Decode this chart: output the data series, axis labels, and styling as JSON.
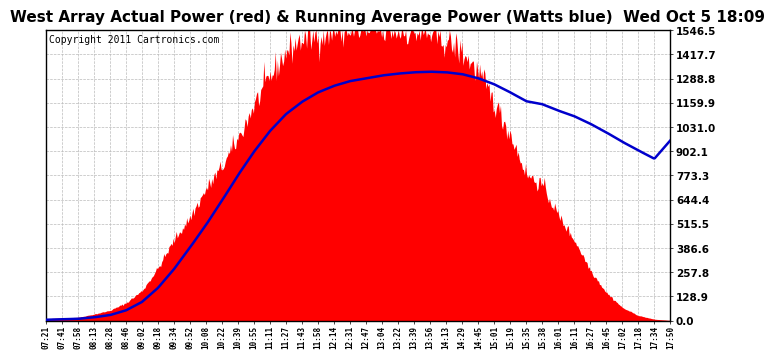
{
  "title": "West Array Actual Power (red) & Running Average Power (Watts blue)  Wed Oct 5 18:09",
  "copyright": "Copyright 2011 Cartronics.com",
  "yticks": [
    0.0,
    128.9,
    257.8,
    386.6,
    515.5,
    644.4,
    773.3,
    902.1,
    1031.0,
    1159.9,
    1288.8,
    1417.7,
    1546.5
  ],
  "ymax": 1546.5,
  "ymin": 0.0,
  "red_color": "#FF0000",
  "blue_color": "#0000CC",
  "bg_color": "#FFFFFF",
  "grid_color": "#BBBBBB",
  "title_fontsize": 11,
  "copyright_fontsize": 7,
  "x_times": [
    "07:21",
    "07:41",
    "07:58",
    "08:13",
    "08:28",
    "08:46",
    "09:02",
    "09:18",
    "09:34",
    "09:52",
    "10:08",
    "10:22",
    "10:39",
    "10:55",
    "11:11",
    "11:27",
    "11:43",
    "11:58",
    "12:14",
    "12:31",
    "12:47",
    "13:04",
    "13:22",
    "13:39",
    "13:56",
    "14:13",
    "14:29",
    "14:45",
    "15:01",
    "15:19",
    "15:35",
    "15:38",
    "16:01",
    "16:11",
    "16:27",
    "16:45",
    "17:02",
    "17:18",
    "17:34",
    "17:50"
  ],
  "red_values": [
    10,
    15,
    18,
    35,
    55,
    95,
    160,
    280,
    430,
    550,
    700,
    820,
    970,
    1150,
    1300,
    1430,
    1500,
    1520,
    1540,
    1546,
    1542,
    1545,
    1540,
    1536,
    1520,
    1490,
    1430,
    1320,
    1160,
    990,
    780,
    720,
    560,
    430,
    270,
    150,
    70,
    28,
    8,
    2
  ],
  "blue_values": [
    5,
    8,
    10,
    18,
    30,
    55,
    100,
    175,
    275,
    390,
    510,
    640,
    775,
    900,
    1010,
    1100,
    1165,
    1215,
    1250,
    1275,
    1290,
    1305,
    1315,
    1322,
    1325,
    1322,
    1312,
    1290,
    1258,
    1215,
    1168,
    1152,
    1118,
    1088,
    1048,
    1002,
    952,
    906,
    862,
    960
  ],
  "noise_seed": 42
}
